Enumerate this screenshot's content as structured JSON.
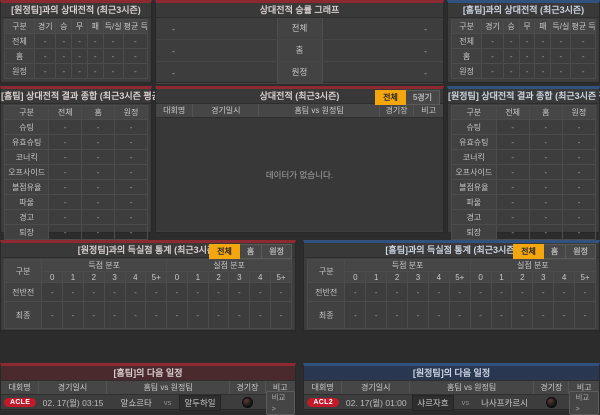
{
  "colors": {
    "page_bg": "#2c2c2c",
    "panel_bg": "#3d3d3d",
    "home_accent": "#8d2a31",
    "away_accent": "#31517e",
    "active_tab_bg": "#f3a60d",
    "league_badge_bg": "#c01a2b"
  },
  "top_left_h2h": {
    "title": "[원정팀]과의 상대전적 (최근3시즌)",
    "columns": [
      "구분",
      "경기",
      "승",
      "무",
      "패",
      "득/실",
      "평균 득/실"
    ],
    "rows": [
      {
        "label": "전체",
        "values": [
          "-",
          "-",
          "-",
          "-",
          "-",
          "-"
        ]
      },
      {
        "label": "홈",
        "values": [
          "-",
          "-",
          "-",
          "-",
          "-",
          "-"
        ]
      },
      {
        "label": "원정",
        "values": [
          "-",
          "-",
          "-",
          "-",
          "-",
          "-"
        ]
      }
    ]
  },
  "top_center_graph": {
    "title": "상대전적 승률 그래프",
    "rows": [
      {
        "label": "전체",
        "left": "-",
        "right": "-"
      },
      {
        "label": "홈",
        "left": "-",
        "right": "-"
      },
      {
        "label": "원정",
        "left": "-",
        "right": "-"
      }
    ]
  },
  "top_right_h2h": {
    "title": "[홈팀]과의 상대전적 (최근3시즌)",
    "columns": [
      "구분",
      "경기",
      "승",
      "무",
      "패",
      "득/실",
      "평균 득/실"
    ],
    "rows": [
      {
        "label": "전체",
        "values": [
          "-",
          "-",
          "-",
          "-",
          "-",
          "-"
        ]
      },
      {
        "label": "홈",
        "values": [
          "-",
          "-",
          "-",
          "-",
          "-",
          "-"
        ]
      },
      {
        "label": "원정",
        "values": [
          "-",
          "-",
          "-",
          "-",
          "-",
          "-"
        ]
      }
    ]
  },
  "mid_left_summary": {
    "title": "[홈팀] 상대전적 결과 종합 (최근3시즌 평균)",
    "columns": [
      "구분",
      "전체",
      "홈",
      "원정"
    ],
    "rows": [
      {
        "label": "슈팅",
        "values": [
          "-",
          "-",
          "-"
        ]
      },
      {
        "label": "유효슈팅",
        "values": [
          "-",
          "-",
          "-"
        ]
      },
      {
        "label": "코너킥",
        "values": [
          "-",
          "-",
          "-"
        ]
      },
      {
        "label": "오프사이드",
        "values": [
          "-",
          "-",
          "-"
        ]
      },
      {
        "label": "볼점유율",
        "values": [
          "-",
          "-",
          "-"
        ]
      },
      {
        "label": "파울",
        "values": [
          "-",
          "-",
          "-"
        ]
      },
      {
        "label": "경고",
        "values": [
          "-",
          "-",
          "-"
        ]
      },
      {
        "label": "퇴장",
        "values": [
          "-",
          "-",
          "-"
        ]
      }
    ]
  },
  "mid_center_matches": {
    "title": "상대전적 (최근3시즌)",
    "tabs": [
      "전체",
      "5경기"
    ],
    "active_tab": "전체",
    "columns": [
      "대회명",
      "경기일시",
      "홈팀 vs 원정팀",
      "경기장",
      "비고"
    ],
    "empty_text": "데이터가 없습니다."
  },
  "mid_right_summary": {
    "title": "[원정팀] 상대전적 결과 종합 (최근3시즌 평균)",
    "columns": [
      "구분",
      "전체",
      "홈",
      "원정"
    ],
    "rows": [
      {
        "label": "슈팅",
        "values": [
          "-",
          "-",
          "-"
        ]
      },
      {
        "label": "유효슈팅",
        "values": [
          "-",
          "-",
          "-"
        ]
      },
      {
        "label": "코너킥",
        "values": [
          "-",
          "-",
          "-"
        ]
      },
      {
        "label": "오프사이드",
        "values": [
          "-",
          "-",
          "-"
        ]
      },
      {
        "label": "볼점유율",
        "values": [
          "-",
          "-",
          "-"
        ]
      },
      {
        "label": "파울",
        "values": [
          "-",
          "-",
          "-"
        ]
      },
      {
        "label": "경고",
        "values": [
          "-",
          "-",
          "-"
        ]
      },
      {
        "label": "퇴장",
        "values": [
          "-",
          "-",
          "-"
        ]
      }
    ]
  },
  "low_left_goals": {
    "title": "[원정팀]과의 득실점 통계 (최근3시즌)",
    "tabs": [
      "전체",
      "홈",
      "원정"
    ],
    "active_tab": "전체",
    "corner_label": "구분",
    "groups": [
      "득점 분포",
      "실점 분포"
    ],
    "score_headers": [
      "0",
      "1",
      "2",
      "3",
      "4",
      "5+"
    ],
    "rows": [
      {
        "label": "전반전",
        "values": [
          "-",
          "-",
          "-",
          "-",
          "-",
          "-",
          "-",
          "-",
          "-",
          "-",
          "-",
          "-"
        ]
      },
      {
        "label": "최종",
        "values": [
          "-",
          "-",
          "-",
          "-",
          "-",
          "-",
          "-",
          "-",
          "-",
          "-",
          "-",
          "-"
        ]
      }
    ]
  },
  "low_right_goals": {
    "title": "[홈팀]과의 득실점 통계 (최근3시즌)",
    "tabs": [
      "전체",
      "홈",
      "원정"
    ],
    "active_tab": "전체",
    "corner_label": "구분",
    "groups": [
      "득점 분포",
      "실점 분포"
    ],
    "score_headers": [
      "0",
      "1",
      "2",
      "3",
      "4",
      "5+"
    ],
    "rows": [
      {
        "label": "전반전",
        "values": [
          "-",
          "-",
          "-",
          "-",
          "-",
          "-",
          "-",
          "-",
          "-",
          "-",
          "-",
          "-"
        ]
      },
      {
        "label": "최종",
        "values": [
          "-",
          "-",
          "-",
          "-",
          "-",
          "-",
          "-",
          "-",
          "-",
          "-",
          "-",
          "-"
        ]
      }
    ]
  },
  "bottom_left_next": {
    "title": "[홈팀]의 다음 일정",
    "columns": [
      "대회명",
      "경기일시",
      "홈팀 vs 원정팀",
      "경기장",
      "비고"
    ],
    "match": {
      "league": "ACLE",
      "datetime": "02. 17(월) 03:15",
      "home": "알쇼르타",
      "vs": "vs",
      "away": "알두하일",
      "highlight": "away",
      "compare_label": "비교 >"
    }
  },
  "bottom_right_next": {
    "title": "[원정팀]의 다음 일정",
    "columns": [
      "대회명",
      "경기일시",
      "홈팀 vs 원정팀",
      "경기장",
      "비고"
    ],
    "match": {
      "league": "ACL2",
      "datetime": "02. 17(월) 01:00",
      "home": "샤르자흐",
      "vs": "vs",
      "away": "나사프카르시",
      "highlight": "home",
      "compare_label": "비교 >"
    }
  }
}
